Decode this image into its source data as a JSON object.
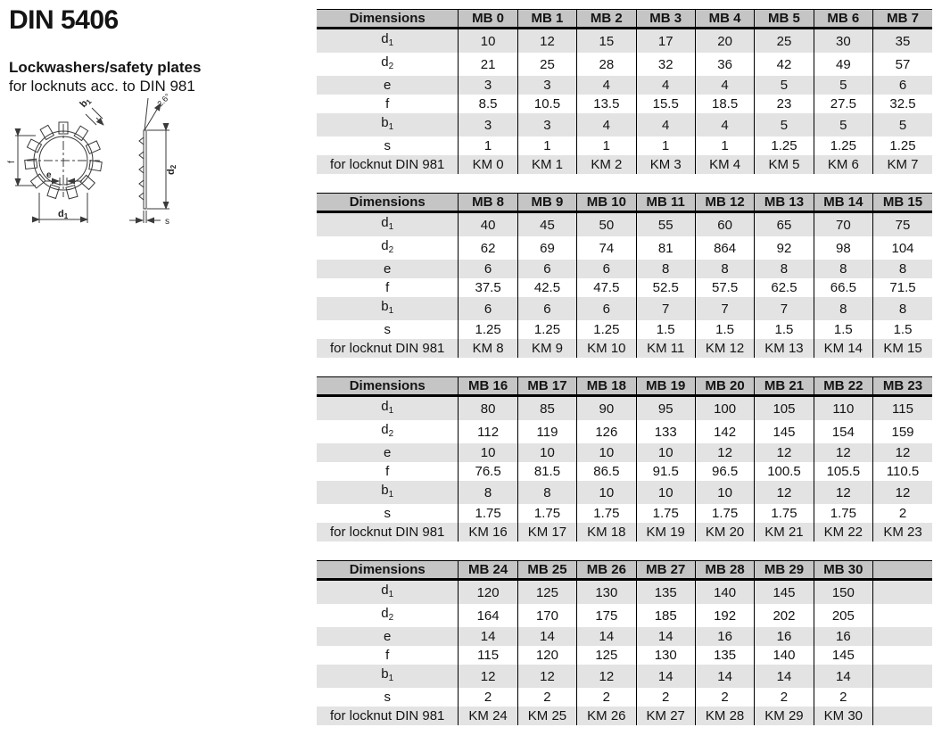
{
  "page": {
    "title": "DIN 5406",
    "product": "Lockwashers/safety plates",
    "description": "for locknuts acc. to DIN 981"
  },
  "colors": {
    "header_bg": "#c5c5c5",
    "stripe_bg": "#e3e3e3",
    "text": "#141414",
    "drawing_stroke": "#3a3a3a"
  },
  "drawing": {
    "label_d1_base": "d",
    "label_d1_sub": "1",
    "label_d2_base": "d",
    "label_d2_sub": "2",
    "label_b1_base": "b",
    "label_b1_sub": "1",
    "label_e": "e",
    "label_f": "f",
    "label_s": "s",
    "label_angle": "2.6°"
  },
  "tables": [
    {
      "header_label": "Dimensions",
      "columns": [
        "MB 0",
        "MB 1",
        "MB 2",
        "MB 3",
        "MB 4",
        "MB 5",
        "MB 6",
        "MB 7"
      ],
      "rows": [
        {
          "label_base": "d",
          "label_sub": "1",
          "values": [
            "10",
            "12",
            "15",
            "17",
            "20",
            "25",
            "30",
            "35"
          ]
        },
        {
          "label_base": "d",
          "label_sub": "2",
          "values": [
            "21",
            "25",
            "28",
            "32",
            "36",
            "42",
            "49",
            "57"
          ]
        },
        {
          "label_base": "e",
          "label_sub": "",
          "values": [
            "3",
            "3",
            "4",
            "4",
            "4",
            "5",
            "5",
            "6"
          ]
        },
        {
          "label_base": "f",
          "label_sub": "",
          "values": [
            "8.5",
            "10.5",
            "13.5",
            "15.5",
            "18.5",
            "23",
            "27.5",
            "32.5"
          ]
        },
        {
          "label_base": "b",
          "label_sub": "1",
          "values": [
            "3",
            "3",
            "4",
            "4",
            "4",
            "5",
            "5",
            "5"
          ]
        },
        {
          "label_base": "s",
          "label_sub": "",
          "values": [
            "1",
            "1",
            "1",
            "1",
            "1",
            "1.25",
            "1.25",
            "1.25"
          ]
        },
        {
          "label_base": "for locknut DIN 981",
          "label_sub": "",
          "values": [
            "KM 0",
            "KM 1",
            "KM 2",
            "KM 3",
            "KM 4",
            "KM 5",
            "KM 6",
            "KM 7"
          ]
        }
      ]
    },
    {
      "header_label": "Dimensions",
      "columns": [
        "MB 8",
        "MB 9",
        "MB 10",
        "MB 11",
        "MB 12",
        "MB 13",
        "MB 14",
        "MB 15"
      ],
      "rows": [
        {
          "label_base": "d",
          "label_sub": "1",
          "values": [
            "40",
            "45",
            "50",
            "55",
            "60",
            "65",
            "70",
            "75"
          ]
        },
        {
          "label_base": "d",
          "label_sub": "2",
          "values": [
            "62",
            "69",
            "74",
            "81",
            "864",
            "92",
            "98",
            "104"
          ]
        },
        {
          "label_base": "e",
          "label_sub": "",
          "values": [
            "6",
            "6",
            "6",
            "8",
            "8",
            "8",
            "8",
            "8"
          ]
        },
        {
          "label_base": "f",
          "label_sub": "",
          "values": [
            "37.5",
            "42.5",
            "47.5",
            "52.5",
            "57.5",
            "62.5",
            "66.5",
            "71.5"
          ]
        },
        {
          "label_base": "b",
          "label_sub": "1",
          "values": [
            "6",
            "6",
            "6",
            "7",
            "7",
            "7",
            "8",
            "8"
          ]
        },
        {
          "label_base": "s",
          "label_sub": "",
          "values": [
            "1.25",
            "1.25",
            "1.25",
            "1.5",
            "1.5",
            "1.5",
            "1.5",
            "1.5"
          ]
        },
        {
          "label_base": "for locknut DIN 981",
          "label_sub": "",
          "values": [
            "KM 8",
            "KM 9",
            "KM 10",
            "KM 11",
            "KM 12",
            "KM 13",
            "KM 14",
            "KM 15"
          ]
        }
      ]
    },
    {
      "header_label": "Dimensions",
      "columns": [
        "MB 16",
        "MB 17",
        "MB 18",
        "MB 19",
        "MB 20",
        "MB 21",
        "MB 22",
        "MB 23"
      ],
      "rows": [
        {
          "label_base": "d",
          "label_sub": "1",
          "values": [
            "80",
            "85",
            "90",
            "95",
            "100",
            "105",
            "110",
            "115"
          ]
        },
        {
          "label_base": "d",
          "label_sub": "2",
          "values": [
            "112",
            "119",
            "126",
            "133",
            "142",
            "145",
            "154",
            "159"
          ]
        },
        {
          "label_base": "e",
          "label_sub": "",
          "values": [
            "10",
            "10",
            "10",
            "10",
            "12",
            "12",
            "12",
            "12"
          ]
        },
        {
          "label_base": "f",
          "label_sub": "",
          "values": [
            "76.5",
            "81.5",
            "86.5",
            "91.5",
            "96.5",
            "100.5",
            "105.5",
            "110.5"
          ]
        },
        {
          "label_base": "b",
          "label_sub": "1",
          "values": [
            "8",
            "8",
            "10",
            "10",
            "10",
            "12",
            "12",
            "12"
          ]
        },
        {
          "label_base": "s",
          "label_sub": "",
          "values": [
            "1.75",
            "1.75",
            "1.75",
            "1.75",
            "1.75",
            "1.75",
            "1.75",
            "2"
          ]
        },
        {
          "label_base": "for locknut DIN 981",
          "label_sub": "",
          "values": [
            "KM 16",
            "KM 17",
            "KM 18",
            "KM 19",
            "KM 20",
            "KM 21",
            "KM 22",
            "KM 23"
          ]
        }
      ]
    },
    {
      "header_label": "Dimensions",
      "columns": [
        "MB 24",
        "MB 25",
        "MB 26",
        "MB 27",
        "MB 28",
        "MB 29",
        "MB 30",
        ""
      ],
      "rows": [
        {
          "label_base": "d",
          "label_sub": "1",
          "values": [
            "120",
            "125",
            "130",
            "135",
            "140",
            "145",
            "150",
            ""
          ]
        },
        {
          "label_base": "d",
          "label_sub": "2",
          "values": [
            "164",
            "170",
            "175",
            "185",
            "192",
            "202",
            "205",
            ""
          ]
        },
        {
          "label_base": "e",
          "label_sub": "",
          "values": [
            "14",
            "14",
            "14",
            "14",
            "16",
            "16",
            "16",
            ""
          ]
        },
        {
          "label_base": "f",
          "label_sub": "",
          "values": [
            "115",
            "120",
            "125",
            "130",
            "135",
            "140",
            "145",
            ""
          ]
        },
        {
          "label_base": "b",
          "label_sub": "1",
          "values": [
            "12",
            "12",
            "12",
            "14",
            "14",
            "14",
            "14",
            ""
          ]
        },
        {
          "label_base": "s",
          "label_sub": "",
          "values": [
            "2",
            "2",
            "2",
            "2",
            "2",
            "2",
            "2",
            ""
          ]
        },
        {
          "label_base": "for locknut DIN 981",
          "label_sub": "",
          "values": [
            "KM 24",
            "KM 25",
            "KM 26",
            "KM 27",
            "KM 28",
            "KM 29",
            "KM 30",
            ""
          ]
        }
      ]
    }
  ]
}
